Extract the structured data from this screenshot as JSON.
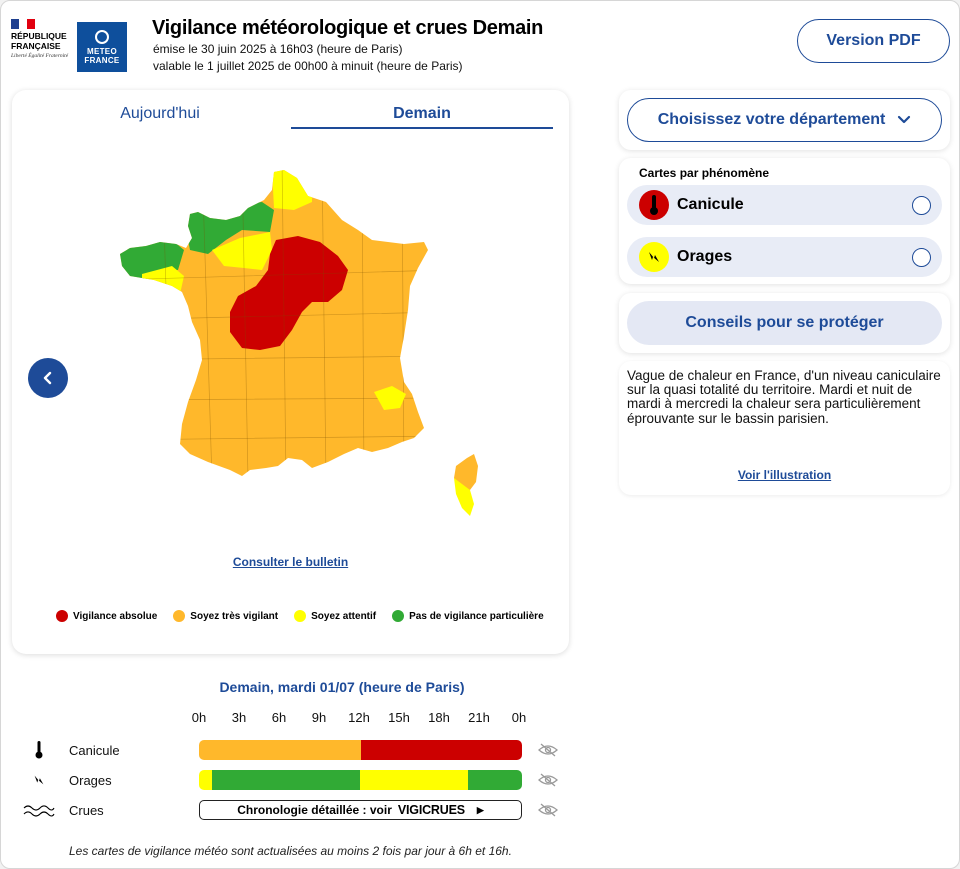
{
  "header": {
    "rf_text": "RÉPUBLIQUE FRANÇAISE",
    "rf_motto": "Liberté Égalité Fraternité",
    "mf_text": "METEO FRANCE",
    "title": "Vigilance météorologique et crues Demain",
    "emitted": "émise le 30 juin 2025 à 16h03 (heure de Paris)",
    "valid": "valable le 1 juillet 2025 de 00h00 à minuit (heure de Paris)",
    "pdf_button": "Version PDF"
  },
  "map": {
    "tabs": [
      {
        "label": "Aujourd'hui",
        "active": false
      },
      {
        "label": "Demain",
        "active": true
      }
    ],
    "bulletin_link": "Consulter le bulletin",
    "legend": [
      {
        "label": "Vigilance absolue",
        "color": "#cc0000"
      },
      {
        "label": "Soyez très vigilant",
        "color": "#ffb82b"
      },
      {
        "label": "Soyez attentif",
        "color": "#ffff00"
      },
      {
        "label": "Pas de vigilance particulière",
        "color": "#31aa35"
      }
    ],
    "regions": {
      "green": "Bretagne west, Normandie coast",
      "yellow": "Pays de la Loire north, Nord, Île-de-France west, Alpes, Corse sud",
      "red": "Centre-Val de Loire, Île-de-France, Bourgogne ouest",
      "orange": "rest of territory"
    }
  },
  "side": {
    "dept_button": "Choisissez votre département",
    "phen_title": "Cartes par phénomène",
    "phenomena": [
      {
        "label": "Canicule",
        "icon": "thermometer-icon",
        "color": "#cc0000"
      },
      {
        "label": "Orages",
        "icon": "lightning-icon",
        "color": "#ffff00"
      }
    ],
    "advice_button": "Conseils pour se protéger",
    "description": "Vague de chaleur en France, d'un niveau caniculaire sur la quasi totalité du territoire. Mardi et nuit de mardi à mercredi la chaleur sera particulièrement éprouvante sur le bassin parisien.",
    "illustration_link": "Voir l'illustration"
  },
  "timeline": {
    "title": "Demain, mardi 01/07 (heure de Paris)",
    "hours": [
      "0h",
      "3h",
      "6h",
      "9h",
      "12h",
      "15h",
      "18h",
      "21h",
      "0h"
    ],
    "rows": [
      {
        "label": "Canicule",
        "icon": "thermometer-icon",
        "segments": [
          {
            "from": 0,
            "to": 12,
            "color": "#ffb82b"
          },
          {
            "from": 12,
            "to": 24,
            "color": "#cc0000"
          }
        ]
      },
      {
        "label": "Orages",
        "icon": "lightning-icon",
        "segments": [
          {
            "from": 0,
            "to": 1,
            "color": "#ffff00"
          },
          {
            "from": 1,
            "to": 12,
            "color": "#31aa35"
          },
          {
            "from": 12,
            "to": 20,
            "color": "#ffff00"
          },
          {
            "from": 20,
            "to": 24,
            "color": "#31aa35"
          }
        ]
      },
      {
        "label": "Crues",
        "icon": "waves-icon"
      }
    ],
    "crues_text": "Chronologie détaillée : voir",
    "vigicrues": "VIGICRUES",
    "footnote": "Les cartes de vigilance météo sont actualisées au moins 2 fois par jour à 6h et 16h."
  }
}
